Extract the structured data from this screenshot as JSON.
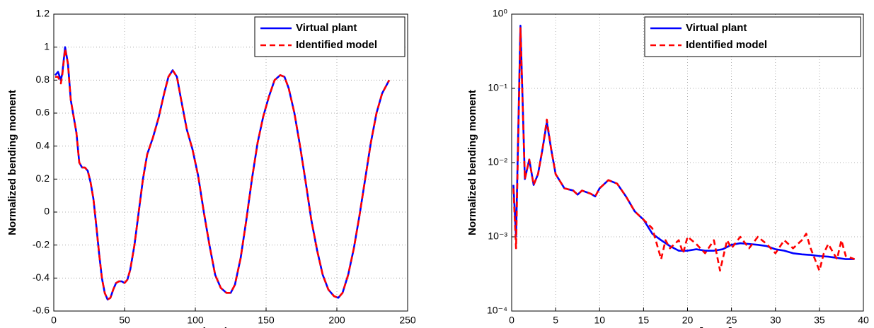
{
  "chart_data": [
    {
      "type": "line",
      "x_label": "Time instants",
      "y_label": "Normalized bending moment",
      "xlim": [
        0,
        250
      ],
      "xticks": [
        0,
        50,
        100,
        150,
        200,
        250
      ],
      "ylim": [
        -0.6,
        1.2
      ],
      "yticks": [
        -0.6,
        -0.4,
        -0.2,
        0,
        0.2,
        0.4,
        0.6,
        0.8,
        1,
        1.2
      ],
      "grid": true,
      "legend": "upper right",
      "series": [
        {
          "name": "Virtual plant",
          "color": "#0000ff",
          "line_style": "solid",
          "x": [
            1,
            3,
            5,
            6,
            8,
            10,
            12,
            14,
            16,
            18,
            20,
            22,
            24,
            26,
            28,
            30,
            32,
            34,
            36,
            38,
            40,
            42,
            44,
            46,
            48,
            50,
            52,
            54,
            57,
            60,
            63,
            66,
            70,
            74,
            78,
            81,
            84,
            87,
            90,
            94,
            98,
            102,
            106,
            110,
            114,
            118,
            122,
            125,
            128,
            132,
            136,
            140,
            144,
            148,
            152,
            156,
            160,
            163,
            166,
            170,
            174,
            178,
            182,
            186,
            190,
            194,
            198,
            201,
            204,
            208,
            212,
            216,
            220,
            224,
            228,
            232,
            237
          ],
          "values": [
            0.83,
            0.85,
            0.8,
            0.84,
            1.0,
            0.9,
            0.68,
            0.58,
            0.48,
            0.3,
            0.27,
            0.27,
            0.25,
            0.18,
            0.08,
            -0.08,
            -0.25,
            -0.4,
            -0.49,
            -0.53,
            -0.52,
            -0.47,
            -0.43,
            -0.42,
            -0.42,
            -0.43,
            -0.41,
            -0.35,
            -0.2,
            0.0,
            0.2,
            0.35,
            0.45,
            0.57,
            0.72,
            0.82,
            0.86,
            0.82,
            0.68,
            0.5,
            0.38,
            0.22,
            0.0,
            -0.2,
            -0.38,
            -0.46,
            -0.49,
            -0.49,
            -0.44,
            -0.28,
            -0.05,
            0.2,
            0.42,
            0.58,
            0.7,
            0.8,
            0.83,
            0.82,
            0.75,
            0.6,
            0.4,
            0.18,
            -0.05,
            -0.23,
            -0.38,
            -0.47,
            -0.51,
            -0.52,
            -0.49,
            -0.38,
            -0.22,
            -0.02,
            0.2,
            0.42,
            0.6,
            0.72,
            0.8
          ]
        },
        {
          "name": "Identified model",
          "color": "#ff0000",
          "line_style": "dashed",
          "x": [
            1,
            3,
            5,
            6,
            8,
            10,
            12,
            14,
            16,
            18,
            20,
            22,
            24,
            26,
            28,
            30,
            32,
            34,
            36,
            38,
            40,
            42,
            44,
            46,
            48,
            50,
            52,
            54,
            57,
            60,
            63,
            66,
            70,
            74,
            78,
            81,
            84,
            87,
            90,
            94,
            98,
            102,
            106,
            110,
            114,
            118,
            122,
            125,
            128,
            132,
            136,
            140,
            144,
            148,
            152,
            156,
            160,
            163,
            166,
            170,
            174,
            178,
            182,
            186,
            190,
            194,
            198,
            201,
            204,
            208,
            212,
            216,
            220,
            224,
            228,
            232,
            237
          ],
          "values": [
            0.82,
            0.82,
            0.78,
            0.83,
            0.99,
            0.9,
            0.68,
            0.58,
            0.48,
            0.3,
            0.27,
            0.27,
            0.25,
            0.18,
            0.08,
            -0.08,
            -0.25,
            -0.4,
            -0.49,
            -0.53,
            -0.52,
            -0.47,
            -0.43,
            -0.42,
            -0.42,
            -0.43,
            -0.41,
            -0.35,
            -0.2,
            0.0,
            0.2,
            0.35,
            0.45,
            0.57,
            0.72,
            0.82,
            0.86,
            0.82,
            0.68,
            0.5,
            0.38,
            0.22,
            0.0,
            -0.2,
            -0.38,
            -0.46,
            -0.49,
            -0.49,
            -0.44,
            -0.28,
            -0.05,
            0.2,
            0.42,
            0.58,
            0.7,
            0.8,
            0.83,
            0.82,
            0.75,
            0.6,
            0.4,
            0.18,
            -0.05,
            -0.23,
            -0.38,
            -0.47,
            -0.51,
            -0.52,
            -0.49,
            -0.38,
            -0.22,
            -0.02,
            0.2,
            0.42,
            0.6,
            0.72,
            0.8
          ]
        }
      ]
    },
    {
      "type": "line",
      "x_label": "Frequency [×Rev]",
      "y_label": "Normalized bending moment",
      "xlim": [
        0,
        40
      ],
      "xticks": [
        0,
        5,
        10,
        15,
        20,
        25,
        30,
        35,
        40
      ],
      "yscale": "log",
      "ylim": [
        0.0001,
        1
      ],
      "yticks": [
        {
          "value": 0.0001,
          "label": "10⁻⁴"
        },
        {
          "value": 0.001,
          "label": "10⁻³"
        },
        {
          "value": 0.01,
          "label": "10⁻²"
        },
        {
          "value": 0.1,
          "label": "10⁻¹"
        },
        {
          "value": 1,
          "label": "10⁰"
        }
      ],
      "grid": true,
      "legend": "upper right",
      "series": [
        {
          "name": "Virtual plant",
          "color": "#0000ff",
          "line_style": "solid",
          "x": [
            0.2,
            0.5,
            1,
            1.5,
            2,
            2.5,
            3,
            3.5,
            4,
            4.5,
            5,
            6,
            7,
            7.5,
            8,
            9,
            9.5,
            10,
            11,
            12,
            13,
            14,
            15,
            16,
            17,
            18,
            19,
            20,
            21,
            22,
            23,
            24,
            25,
            26,
            27,
            28,
            29,
            30,
            31,
            32,
            33,
            34,
            35,
            36,
            37,
            38,
            39
          ],
          "values": [
            0.005,
            0.001,
            0.7,
            0.006,
            0.011,
            0.005,
            0.007,
            0.015,
            0.035,
            0.015,
            0.007,
            0.0045,
            0.0042,
            0.0037,
            0.0042,
            0.0038,
            0.0035,
            0.0045,
            0.0058,
            0.0052,
            0.0035,
            0.0022,
            0.0017,
            0.0011,
            0.0009,
            0.00075,
            0.00065,
            0.00065,
            0.00068,
            0.00065,
            0.00065,
            0.00068,
            0.00078,
            0.00082,
            0.0008,
            0.00078,
            0.00075,
            0.00068,
            0.00065,
            0.0006,
            0.00058,
            0.00057,
            0.00055,
            0.00054,
            0.00052,
            0.0005,
            0.0005
          ]
        },
        {
          "name": "Identified model",
          "color": "#ff0000",
          "line_style": "dashed",
          "x": [
            0.2,
            0.5,
            1,
            1.5,
            2,
            2.5,
            3,
            3.5,
            4,
            4.5,
            5,
            6,
            7,
            7.5,
            8,
            9,
            9.5,
            10,
            11,
            12,
            13,
            14,
            15,
            16,
            17,
            17.5,
            18,
            19,
            19.5,
            20,
            21,
            22,
            23,
            23.7,
            24.5,
            25,
            26,
            27,
            28,
            29,
            30,
            31,
            32,
            33,
            33.5,
            34,
            35,
            35.5,
            36,
            37,
            37.5,
            38,
            39
          ],
          "values": [
            0.0045,
            0.0007,
            0.65,
            0.006,
            0.011,
            0.005,
            0.007,
            0.015,
            0.038,
            0.015,
            0.007,
            0.0045,
            0.0042,
            0.0037,
            0.0042,
            0.0038,
            0.0035,
            0.0045,
            0.0058,
            0.0052,
            0.0035,
            0.0022,
            0.0017,
            0.0013,
            0.0005,
            0.0009,
            0.0007,
            0.0009,
            0.0006,
            0.001,
            0.0008,
            0.0006,
            0.0009,
            0.00035,
            0.0009,
            0.0007,
            0.001,
            0.0007,
            0.001,
            0.0008,
            0.0006,
            0.0009,
            0.0007,
            0.0009,
            0.0011,
            0.0007,
            0.00035,
            0.0006,
            0.0008,
            0.0005,
            0.0009,
            0.00055,
            0.0005
          ]
        }
      ]
    }
  ]
}
